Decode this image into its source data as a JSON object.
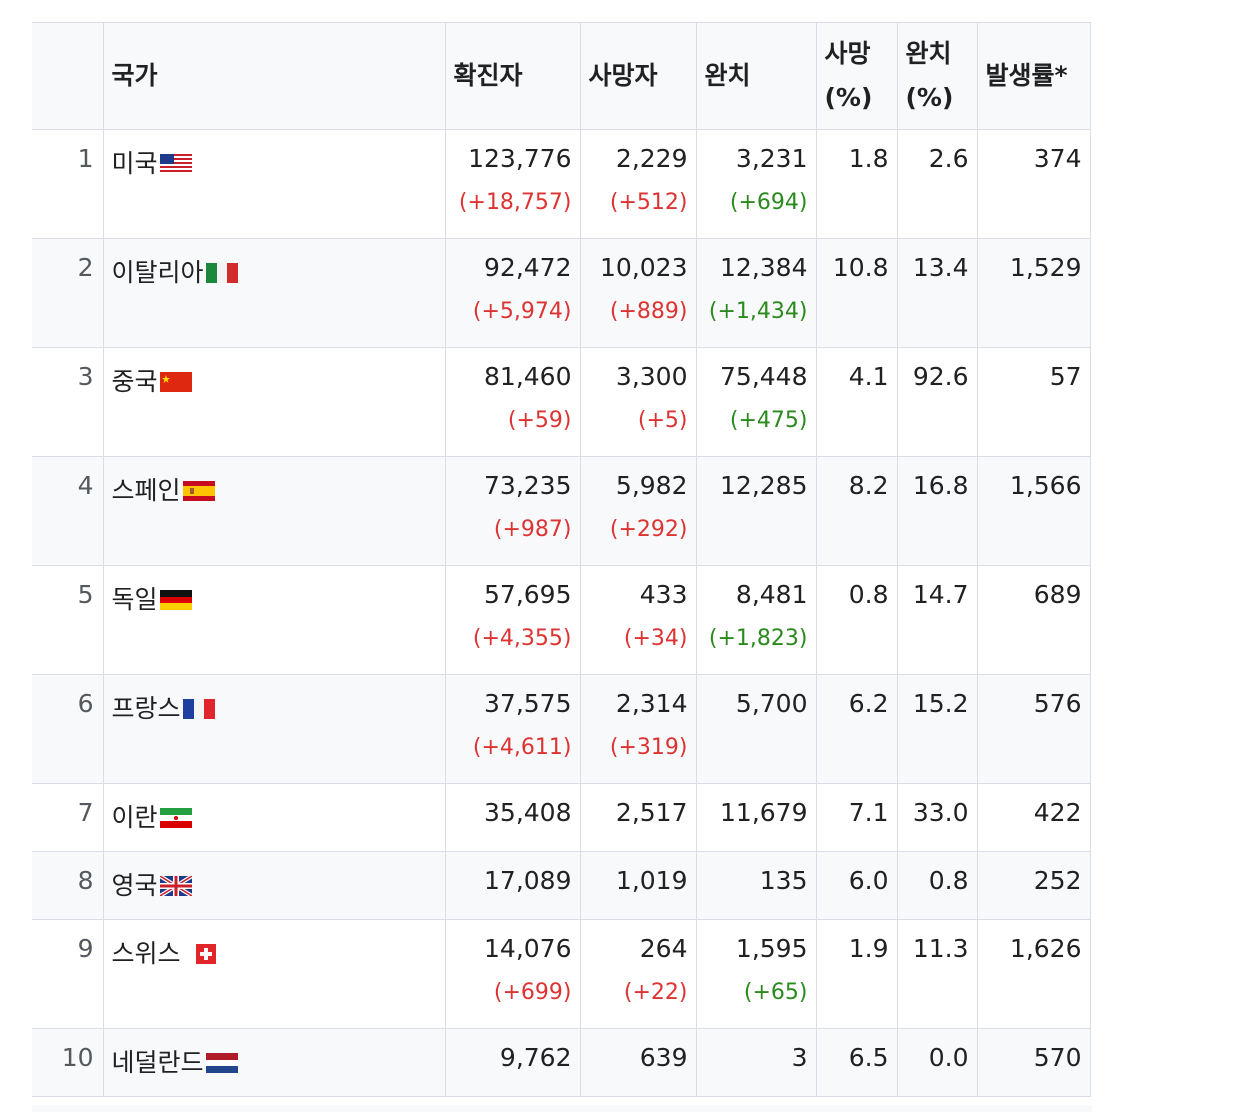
{
  "table": {
    "headers": {
      "rank": "",
      "country": "국가",
      "confirmed": "확진자",
      "deaths": "사망자",
      "recovered": "완치",
      "death_rate_line1": "사망",
      "death_rate_line2": "(%)",
      "recovery_rate_line1": "완치",
      "recovery_rate_line2": "(%)",
      "incidence": "발생률*"
    },
    "rows": [
      {
        "rank": "1",
        "country": "미국",
        "flag": "us-flag-icon",
        "confirmed": "123,776",
        "confirmed_delta": "(+18,757)",
        "deaths": "2,229",
        "deaths_delta": "(+512)",
        "recovered": "3,231",
        "recovered_delta": "(+694)",
        "death_rate": "1.8",
        "recovery_rate": "2.6",
        "incidence": "374"
      },
      {
        "rank": "2",
        "country": "이탈리아",
        "flag": "italy-flag-icon",
        "confirmed": "92,472",
        "confirmed_delta": "(+5,974)",
        "deaths": "10,023",
        "deaths_delta": "(+889)",
        "recovered": "12,384",
        "recovered_delta": "(+1,434)",
        "death_rate": "10.8",
        "recovery_rate": "13.4",
        "incidence": "1,529"
      },
      {
        "rank": "3",
        "country": "중국",
        "flag": "china-flag-icon",
        "confirmed": "81,460",
        "confirmed_delta": "(+59)",
        "deaths": "3,300",
        "deaths_delta": "(+5)",
        "recovered": "75,448",
        "recovered_delta": "(+475)",
        "death_rate": "4.1",
        "recovery_rate": "92.6",
        "incidence": "57"
      },
      {
        "rank": "4",
        "country": "스페인",
        "flag": "spain-flag-icon",
        "confirmed": "73,235",
        "confirmed_delta": "(+987)",
        "deaths": "5,982",
        "deaths_delta": "(+292)",
        "recovered": "12,285",
        "recovered_delta": "",
        "death_rate": "8.2",
        "recovery_rate": "16.8",
        "incidence": "1,566"
      },
      {
        "rank": "5",
        "country": "독일",
        "flag": "germany-flag-icon",
        "confirmed": "57,695",
        "confirmed_delta": "(+4,355)",
        "deaths": "433",
        "deaths_delta": "(+34)",
        "recovered": "8,481",
        "recovered_delta": "(+1,823)",
        "death_rate": "0.8",
        "recovery_rate": "14.7",
        "incidence": "689"
      },
      {
        "rank": "6",
        "country": "프랑스",
        "flag": "france-flag-icon",
        "confirmed": "37,575",
        "confirmed_delta": "(+4,611)",
        "deaths": "2,314",
        "deaths_delta": "(+319)",
        "recovered": "5,700",
        "recovered_delta": "",
        "death_rate": "6.2",
        "recovery_rate": "15.2",
        "incidence": "576"
      },
      {
        "rank": "7",
        "country": "이란",
        "flag": "iran-flag-icon",
        "confirmed": "35,408",
        "confirmed_delta": "",
        "deaths": "2,517",
        "deaths_delta": "",
        "recovered": "11,679",
        "recovered_delta": "",
        "death_rate": "7.1",
        "recovery_rate": "33.0",
        "incidence": "422"
      },
      {
        "rank": "8",
        "country": "영국",
        "flag": "uk-flag-icon",
        "confirmed": "17,089",
        "confirmed_delta": "",
        "deaths": "1,019",
        "deaths_delta": "",
        "recovered": "135",
        "recovered_delta": "",
        "death_rate": "6.0",
        "recovery_rate": "0.8",
        "incidence": "252"
      },
      {
        "rank": "9",
        "country": "스위스 ",
        "flag": "switzerland-flag-icon",
        "confirmed": "14,076",
        "confirmed_delta": "(+699)",
        "deaths": "264",
        "deaths_delta": "(+22)",
        "recovered": "1,595",
        "recovered_delta": "(+65)",
        "death_rate": "1.9",
        "recovery_rate": "11.3",
        "incidence": "1,626"
      },
      {
        "rank": "10",
        "country": "네덜란드",
        "flag": "netherlands-flag-icon",
        "confirmed": "9,762",
        "confirmed_delta": "",
        "deaths": "639",
        "deaths_delta": "",
        "recovered": "3",
        "recovered_delta": "",
        "death_rate": "6.5",
        "recovery_rate": "0.0",
        "incidence": "570"
      }
    ]
  }
}
